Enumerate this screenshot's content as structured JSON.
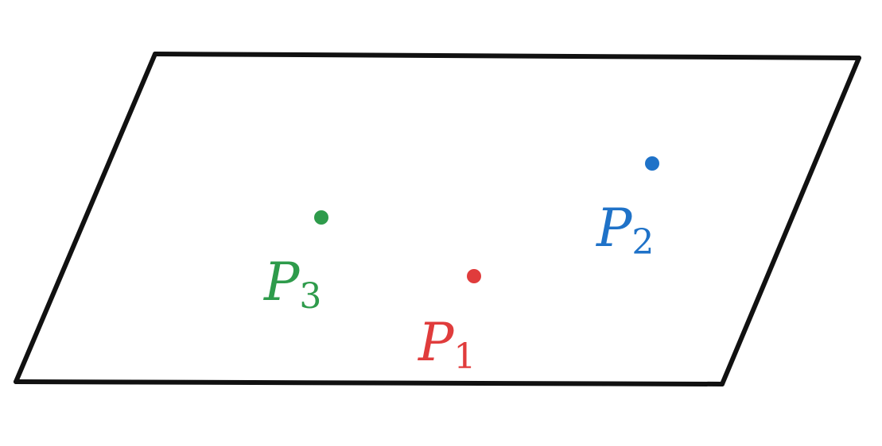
{
  "diagram": {
    "points": [
      {
        "id": "p1",
        "letter": "P",
        "subscript": "1",
        "color": "#e03c3c"
      },
      {
        "id": "p2",
        "letter": "P",
        "subscript": "2",
        "color": "#1f72c8"
      },
      {
        "id": "p3",
        "letter": "P",
        "subscript": "3",
        "color": "#2e9b4b"
      }
    ]
  }
}
